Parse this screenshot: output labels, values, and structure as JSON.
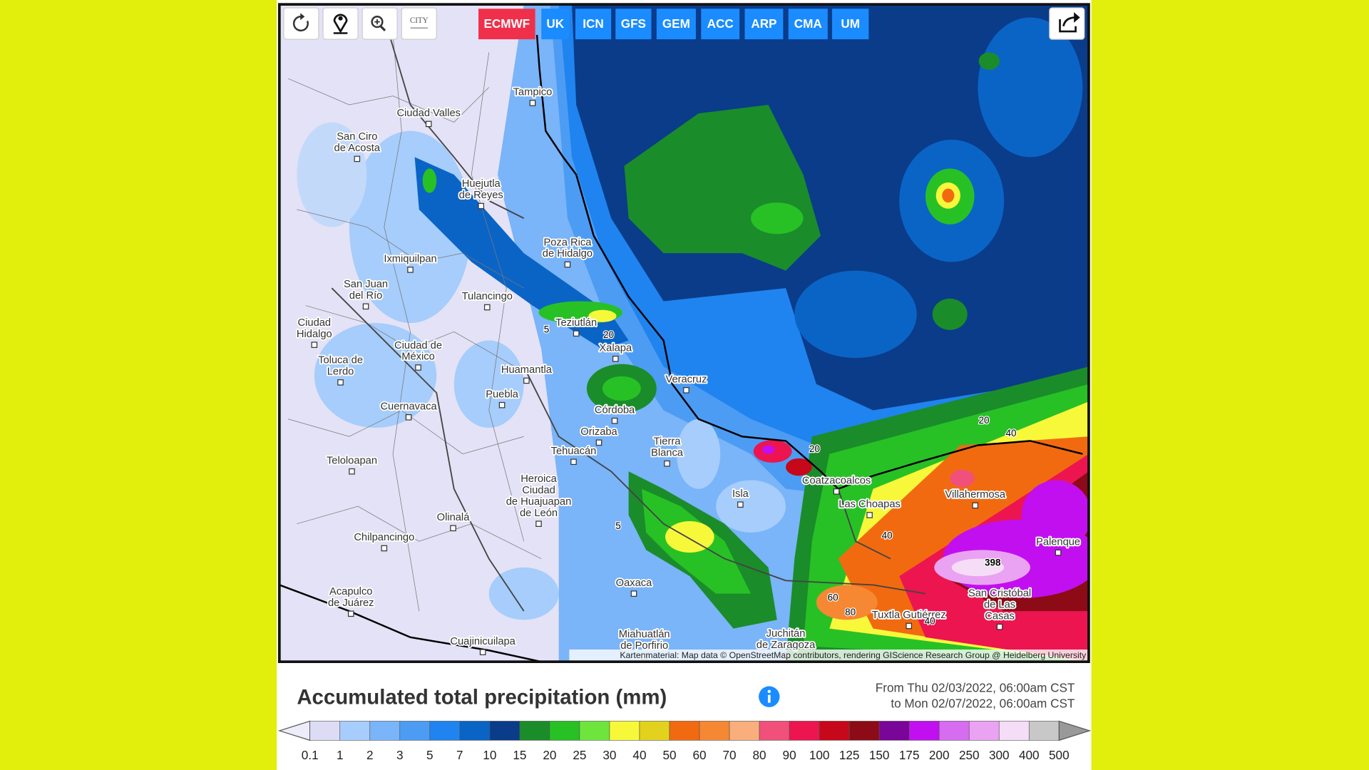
{
  "toolbar": {
    "city_button": "CITY"
  },
  "models": [
    {
      "name": "ECMWF",
      "active": true
    },
    {
      "name": "UK",
      "active": false
    },
    {
      "name": "ICN",
      "active": false
    },
    {
      "name": "GFS",
      "active": false
    },
    {
      "name": "GEM",
      "active": false
    },
    {
      "name": "ACC",
      "active": false
    },
    {
      "name": "ARP",
      "active": false
    },
    {
      "name": "CMA",
      "active": false
    },
    {
      "name": "UM",
      "active": false
    }
  ],
  "button_colors": {
    "active": "#f0304a",
    "inactive": "#1a8cff"
  },
  "map": {
    "cities": [
      {
        "lines": [
          "Tampico"
        ]
      },
      {
        "lines": [
          "Ciudad Valles"
        ]
      },
      {
        "lines": [
          "San Ciro",
          "de Acosta"
        ]
      },
      {
        "lines": [
          "Huejutla",
          "de Reyes"
        ]
      },
      {
        "lines": [
          "Poza Rica",
          "de Hidalgo"
        ]
      },
      {
        "lines": [
          "Ixmiquilpan"
        ]
      },
      {
        "lines": [
          "San Juan",
          "del Río"
        ]
      },
      {
        "lines": [
          "Tulancingo"
        ]
      },
      {
        "lines": [
          "Ciudad",
          "Hidalgo"
        ]
      },
      {
        "lines": [
          "Teziutlán"
        ]
      },
      {
        "lines": [
          "Xalapa"
        ]
      },
      {
        "lines": [
          "Ciudad de",
          "México"
        ]
      },
      {
        "lines": [
          "Toluca de",
          "Lerdo"
        ]
      },
      {
        "lines": [
          "Huamantla"
        ]
      },
      {
        "lines": [
          "Veracruz"
        ]
      },
      {
        "lines": [
          "Puebla"
        ]
      },
      {
        "lines": [
          "Cuernavaca"
        ]
      },
      {
        "lines": [
          "Córdoba"
        ]
      },
      {
        "lines": [
          "Orizaba"
        ]
      },
      {
        "lines": [
          "Tierra",
          "Blanca"
        ]
      },
      {
        "lines": [
          "Tehuacán"
        ]
      },
      {
        "lines": [
          "Teloloapan"
        ]
      },
      {
        "lines": [
          "Heroica",
          "Ciudad",
          "de Huajuapan",
          "de León"
        ]
      },
      {
        "lines": [
          "Isla"
        ]
      },
      {
        "lines": [
          "Coatzacoalcos"
        ]
      },
      {
        "lines": [
          "Las Choapas"
        ]
      },
      {
        "lines": [
          "Villahermosa"
        ]
      },
      {
        "lines": [
          "Olinalá"
        ]
      },
      {
        "lines": [
          "Chilpancingo"
        ]
      },
      {
        "lines": [
          "Palenque"
        ]
      },
      {
        "lines": [
          "Oaxaca"
        ]
      },
      {
        "lines": [
          "Acapulco",
          "de Juárez"
        ]
      },
      {
        "lines": [
          "San Cristóbal",
          "de Las",
          "Casas"
        ]
      },
      {
        "lines": [
          "Tuxtla Gutiérrez"
        ]
      },
      {
        "lines": [
          "Miahuatlán",
          "de Porfirio"
        ]
      },
      {
        "lines": [
          "Juchitán",
          "de Zaragoza"
        ]
      },
      {
        "lines": [
          "Cuajinicuilapa"
        ]
      }
    ],
    "contour_labels": [
      5,
      20,
      20,
      20,
      40,
      40,
      60,
      80,
      40,
      5,
      398
    ],
    "attribution": "Kartenmaterial: Map data © OpenStreetMap contributors, rendering GIScience Research Group @ Heidelberg University"
  },
  "legend": {
    "title": "Accumulated total precipitation (mm)",
    "period": [
      "From Thu 02/03/2022, 06:00am CST",
      "to Mon 02/07/2022, 06:00am CST"
    ],
    "labels": [
      0.1,
      1,
      2,
      3,
      5,
      7,
      10,
      15,
      20,
      25,
      30,
      40,
      50,
      60,
      70,
      80,
      90,
      100,
      125,
      150,
      175,
      200,
      250,
      300,
      400,
      500
    ],
    "colors": [
      "#dcdcf5",
      "#a6cdfb",
      "#7ab4f9",
      "#4d9cf3",
      "#1f84ef",
      "#0a64c6",
      "#0a3c8a",
      "#1b8c2a",
      "#27c126",
      "#6ee53d",
      "#f8f83b",
      "#e3d21d",
      "#f26a10",
      "#f68833",
      "#f9ae7c",
      "#f0507a",
      "#ec1550",
      "#c6081a",
      "#8c0b16",
      "#7a0599",
      "#c20ff0",
      "#d66cf0",
      "#eaa2f2",
      "#f5dcf7",
      "#c8c8c8"
    ],
    "below_color": "#ececfa",
    "above_color": "#999999"
  }
}
